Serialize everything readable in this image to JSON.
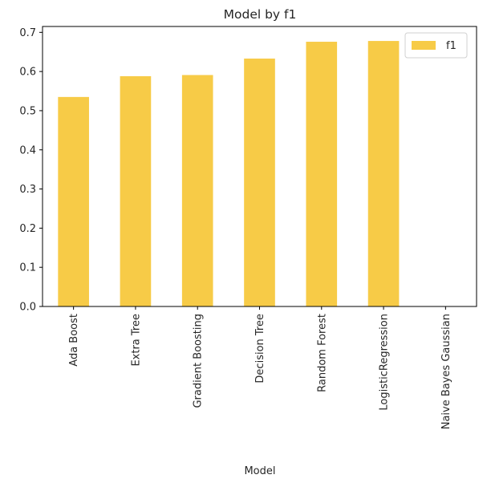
{
  "chart_data": {
    "type": "bar",
    "title": "Model by f1",
    "xlabel": "Model",
    "ylabel": "",
    "categories": [
      "Ada Boost",
      "Extra Tree",
      "Gradient Boosting",
      "Decision Tree",
      "Random Forest",
      "LogisticRegression",
      "Naive Bayes Gaussian"
    ],
    "series": [
      {
        "name": "f1",
        "values": [
          0.535,
          0.588,
          0.591,
          0.633,
          0.676,
          0.678,
          0.0
        ]
      }
    ],
    "ylim": [
      0,
      0.715
    ],
    "yticks": [
      "0.0",
      "0.1",
      "0.2",
      "0.3",
      "0.4",
      "0.5",
      "0.6",
      "0.7"
    ],
    "grid": false,
    "legend_position": "top-right",
    "colors": {
      "bar": "#f7cb47",
      "axis": "#000000",
      "text": "#262626"
    }
  }
}
